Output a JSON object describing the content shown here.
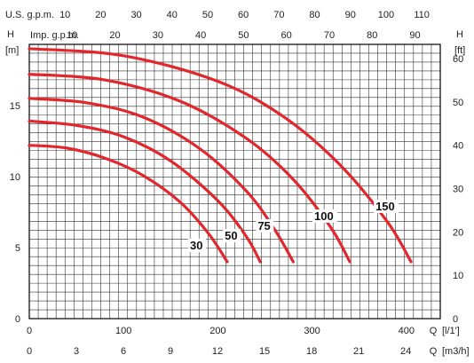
{
  "chart_data": {
    "type": "line",
    "colors": {
      "curve": "#e3262b",
      "grid": "#333333",
      "text": "#222222"
    },
    "grid": true,
    "axes": {
      "left": {
        "label": "H",
        "unit": "[m]",
        "range": [
          0,
          19.3
        ],
        "ticks": [
          0,
          5,
          10,
          15
        ]
      },
      "right": {
        "label": "H",
        "unit": "[ft]",
        "range": [
          0,
          63.3
        ],
        "ticks": [
          0,
          10,
          20,
          30,
          40,
          50,
          60
        ]
      },
      "bottom_lpm": {
        "label": "Q",
        "unit": "[l/1']",
        "range": [
          0,
          436
        ],
        "ticks": [
          0,
          100,
          200,
          300,
          400
        ]
      },
      "bottom_m3h": {
        "label": "Q",
        "unit": "[m3/h]",
        "range": [
          0,
          26.2
        ],
        "ticks": [
          0,
          3,
          6,
          9,
          12,
          15,
          18,
          21,
          24
        ]
      },
      "top_usgpm": {
        "label": "U.S. g.p.m.",
        "range": [
          0,
          115.2
        ],
        "ticks": [
          10,
          20,
          30,
          40,
          50,
          60,
          70,
          80,
          90,
          100,
          110
        ]
      },
      "top_impgpm": {
        "label": "Imp. g.p.m.",
        "range": [
          0,
          95.9
        ],
        "ticks": [
          10,
          20,
          30,
          40,
          50,
          60,
          70,
          80,
          90
        ]
      }
    },
    "series": [
      {
        "name": "30",
        "x": [
          0,
          40,
          80,
          120,
          160,
          190,
          210
        ],
        "y": [
          12.2,
          12.0,
          11.3,
          10.1,
          8.2,
          6.0,
          4.0
        ]
      },
      {
        "name": "50",
        "x": [
          0,
          50,
          100,
          150,
          200,
          230,
          245
        ],
        "y": [
          13.9,
          13.6,
          12.8,
          11.1,
          8.3,
          5.8,
          4.0
        ]
      },
      {
        "name": "75",
        "x": [
          0,
          60,
          120,
          180,
          230,
          260,
          280
        ],
        "y": [
          15.5,
          15.2,
          14.2,
          12.0,
          9.0,
          6.3,
          4.0
        ]
      },
      {
        "name": "100",
        "x": [
          0,
          80,
          160,
          230,
          280,
          320,
          340
        ],
        "y": [
          17.2,
          16.8,
          15.3,
          12.7,
          9.8,
          6.4,
          4.0
        ]
      },
      {
        "name": "150",
        "x": [
          0,
          100,
          200,
          270,
          330,
          380,
          405
        ],
        "y": [
          19.0,
          18.5,
          16.7,
          14.2,
          10.8,
          6.8,
          4.0
        ]
      }
    ],
    "labels": {
      "left_unit": "[m]",
      "right_unit": "[ft]",
      "h_left": "H",
      "h_right": "H",
      "top_row1": "U.S. g.p.m.",
      "top_row2": "Imp. g.p.m.",
      "bottom_q1": "Q",
      "bottom_unit1": "[l/1']",
      "bottom_q2": "Q",
      "bottom_unit2": "[m3/h]"
    }
  }
}
